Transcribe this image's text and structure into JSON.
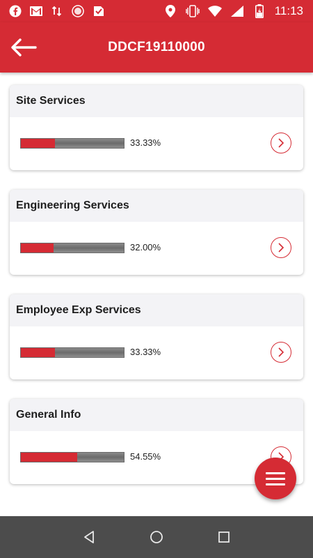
{
  "status_bar": {
    "time": "11:13",
    "left_icons": [
      "facebook-icon",
      "gmail-icon",
      "data-sync-icon",
      "record-icon",
      "tasks-icon"
    ],
    "right_icons": [
      "location-icon",
      "vibrate-icon",
      "wifi-icon",
      "signal-icon",
      "battery-charging-icon"
    ]
  },
  "appbar": {
    "title": "DDCF19110000",
    "back_icon": "arrow-left-icon"
  },
  "sections": [
    {
      "title": "Site Services",
      "progress": 33.33,
      "progress_label": "33.33%"
    },
    {
      "title": "Engineering Services",
      "progress": 32.0,
      "progress_label": "32.00%"
    },
    {
      "title": "Employee Exp Services",
      "progress": 33.33,
      "progress_label": "33.33%"
    },
    {
      "title": "General Info",
      "progress": 54.55,
      "progress_label": "54.55%"
    }
  ],
  "fab": {
    "icon": "menu-icon"
  },
  "nav_bar": {
    "icons": [
      "back-triangle-icon",
      "home-circle-icon",
      "recents-square-icon"
    ]
  },
  "colors": {
    "brand": "#d52b34",
    "nav": "#4c4c4c",
    "header_bg": "#f3f3f6",
    "track": "#7a7a7a"
  }
}
